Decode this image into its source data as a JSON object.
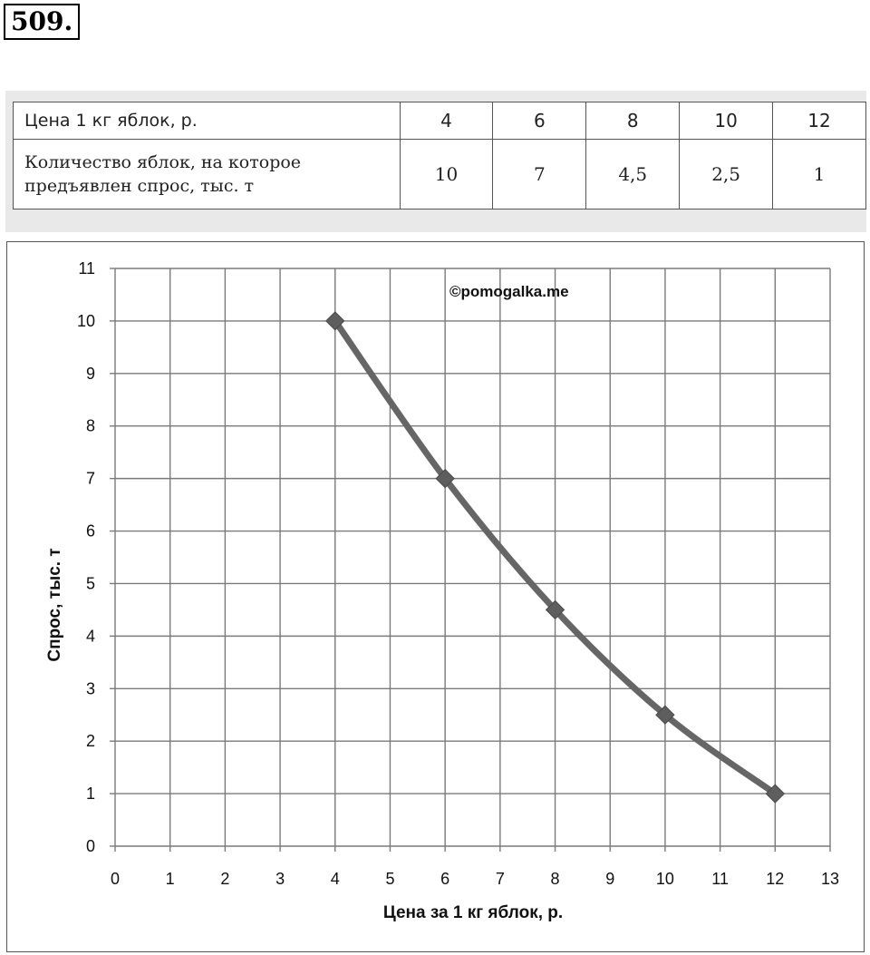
{
  "problem_number": "509.",
  "table": {
    "row1_label": "Цена 1 кг яблок, р.",
    "row2_label_line1": "Количество яблок, на которое",
    "row2_label_line2": "предъявлен спрос, тыс. т",
    "prices": [
      "4",
      "6",
      "8",
      "10",
      "12"
    ],
    "quantities": [
      "10",
      "7",
      "4,5",
      "2,5",
      "1"
    ]
  },
  "chart_data": {
    "type": "line",
    "x": [
      4,
      6,
      8,
      10,
      12
    ],
    "series": [
      {
        "values": [
          10,
          7,
          4.5,
          2.5,
          1
        ],
        "color": "#666666"
      }
    ],
    "xlabel": "Цена за 1 кг яблок, р.",
    "ylabel": "Спрос, тыс. т",
    "xlim": [
      0,
      13
    ],
    "ylim": [
      0,
      11
    ],
    "xticks": [
      0,
      1,
      2,
      3,
      4,
      5,
      6,
      7,
      8,
      9,
      10,
      11,
      12,
      13
    ],
    "yticks": [
      0,
      1,
      2,
      3,
      4,
      5,
      6,
      7,
      8,
      9,
      10,
      11
    ],
    "grid": true,
    "marker": "diamond",
    "smooth": true,
    "watermark": "©pomogalka.me"
  }
}
